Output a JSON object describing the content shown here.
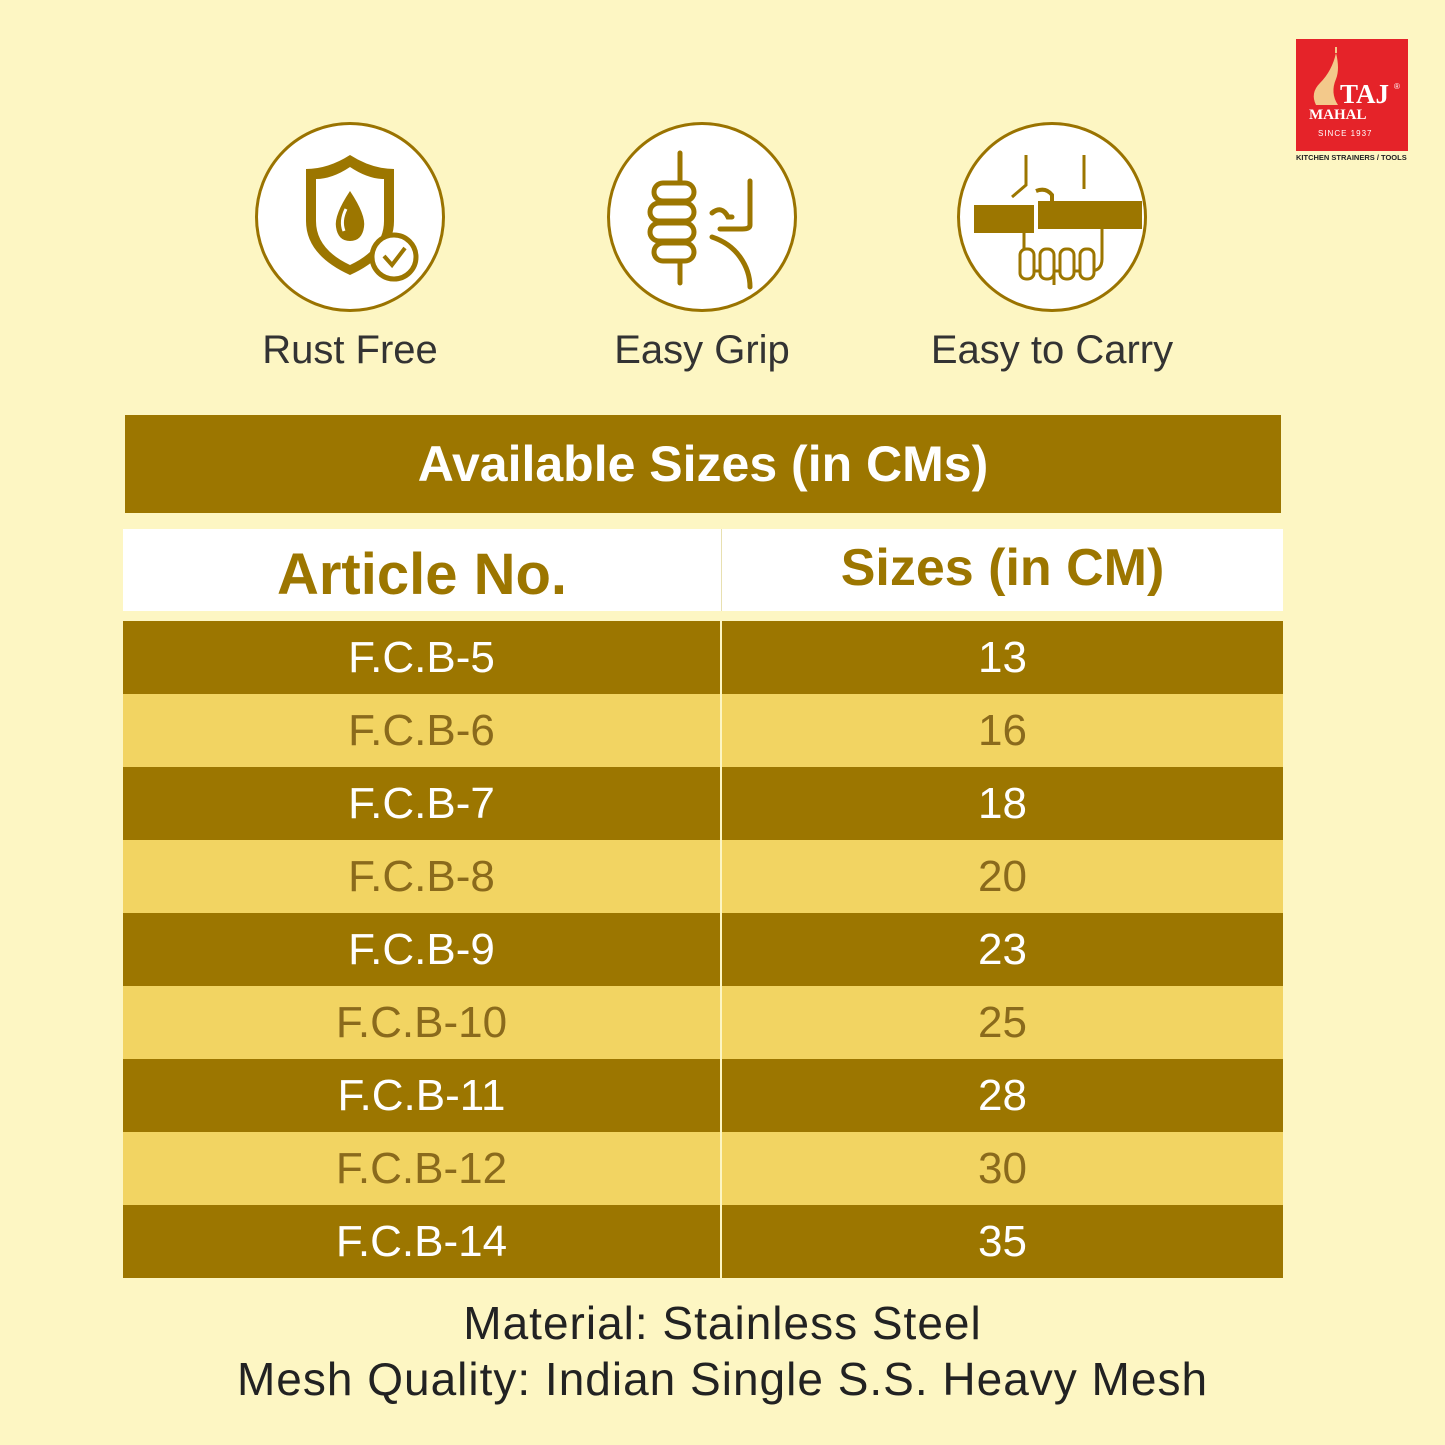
{
  "brand": {
    "name_line1": "TAJ",
    "name_line2": "MAHAL",
    "registered": "®",
    "since": "SINCE 1937",
    "tagline": "KITCHEN STRAINERS / TOOLS",
    "color": "#e52329"
  },
  "features": [
    {
      "label": "Rust Free",
      "icon": "shield-drop-icon"
    },
    {
      "label": "Easy Grip",
      "icon": "hand-grip-icon"
    },
    {
      "label": "Easy to Carry",
      "icon": "hand-carry-icon"
    }
  ],
  "table": {
    "title": "Available Sizes (in CMs)",
    "columns": [
      "Article No.",
      "Sizes (in CM)"
    ],
    "rows": [
      {
        "article": "F.C.B-5",
        "size": "13"
      },
      {
        "article": "F.C.B-6",
        "size": "16"
      },
      {
        "article": "F.C.B-7",
        "size": "18"
      },
      {
        "article": "F.C.B-8",
        "size": "20"
      },
      {
        "article": "F.C.B-9",
        "size": "23"
      },
      {
        "article": "F.C.B-10",
        "size": "25"
      },
      {
        "article": "F.C.B-11",
        "size": "28"
      },
      {
        "article": "F.C.B-12",
        "size": "30"
      },
      {
        "article": "F.C.B-14",
        "size": "35"
      }
    ]
  },
  "footer": {
    "material": "Material: Stainless Steel",
    "mesh": "Mesh Quality: Indian Single S.S. Heavy Mesh"
  },
  "colors": {
    "background": "#fdf6c3",
    "gold_dark": "#9c7600",
    "gold_light": "#f2d462"
  }
}
